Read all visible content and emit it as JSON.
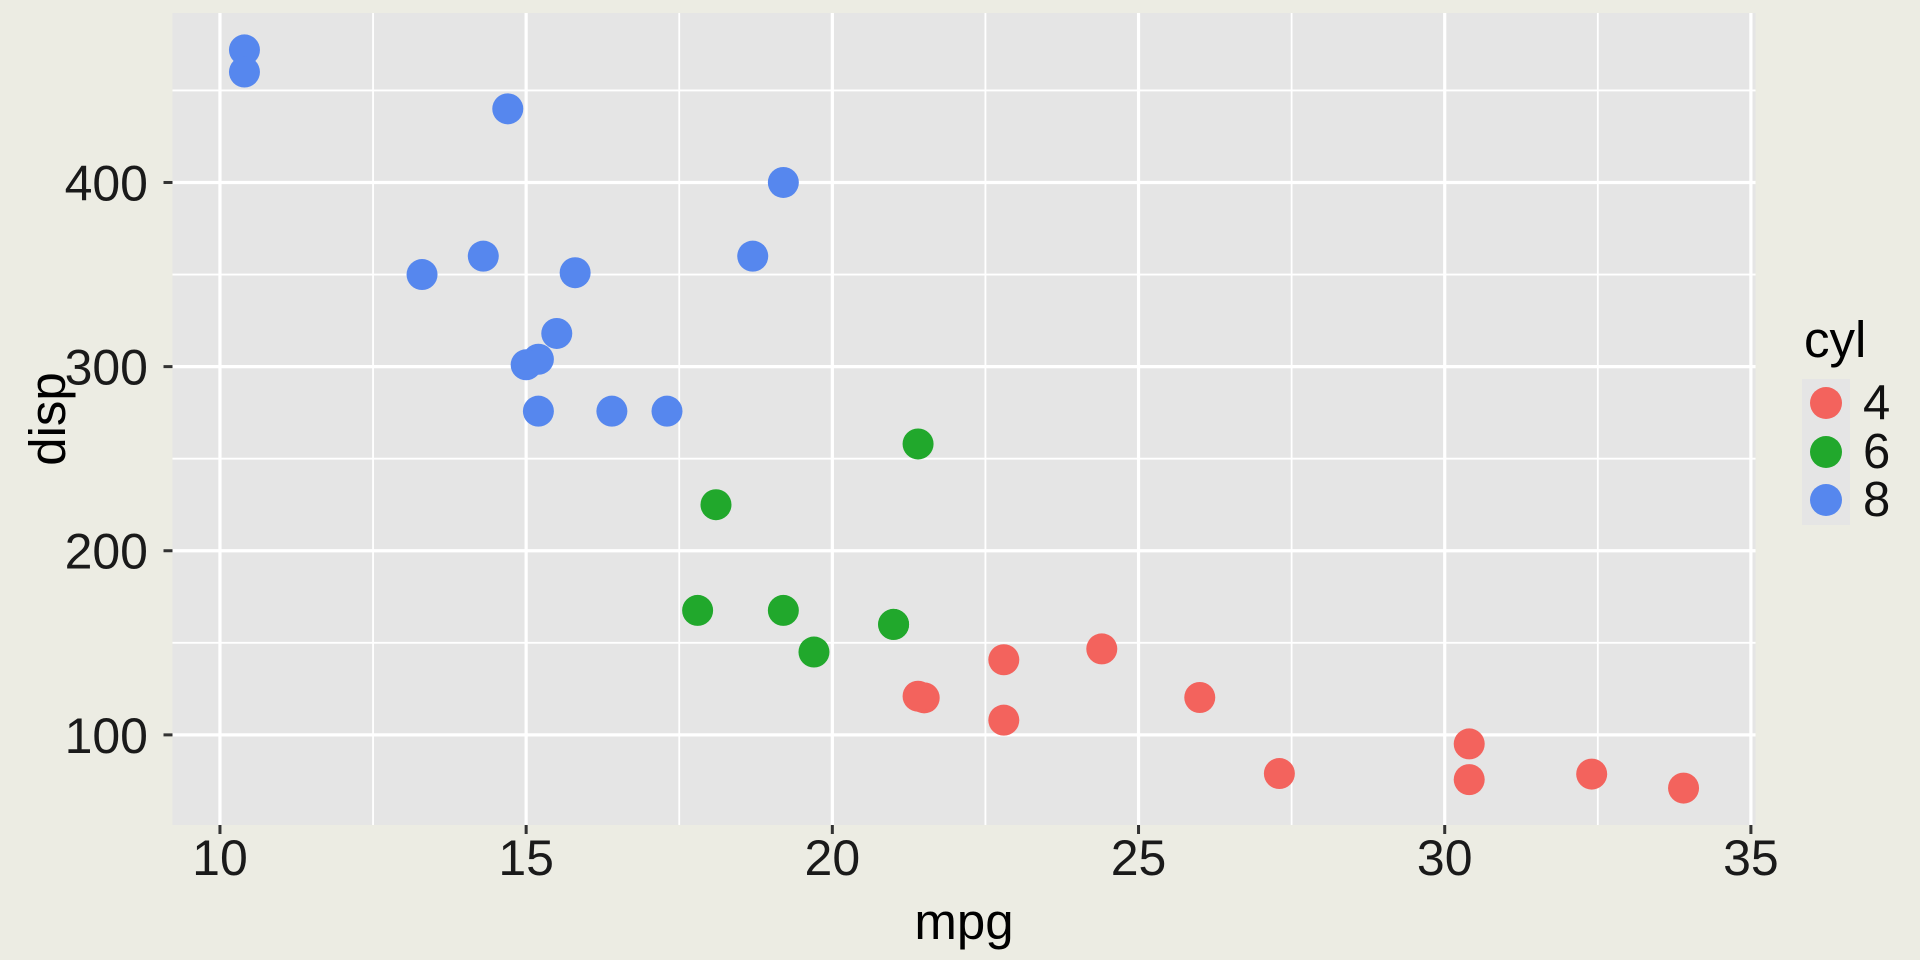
{
  "chart_data": {
    "type": "scatter",
    "title": "",
    "xlabel": "mpg",
    "ylabel": "disp",
    "xlim": [
      9.225,
      35.075
    ],
    "ylim": [
      51.055,
      492.045
    ],
    "x_ticks": [
      10,
      15,
      20,
      25,
      30,
      35
    ],
    "x_minor_ticks": [
      12.5,
      17.5,
      22.5,
      27.5,
      32.5
    ],
    "y_ticks": [
      100,
      200,
      300,
      400
    ],
    "y_minor_ticks": [
      150,
      250,
      350,
      450
    ],
    "grid": true,
    "legend": {
      "title": "cyl",
      "position": "right",
      "entries": [
        {
          "label": "4",
          "color": "#f3635d"
        },
        {
          "label": "6",
          "color": "#21a82c"
        },
        {
          "label": "8",
          "color": "#5687ee"
        }
      ]
    },
    "series": [
      {
        "name": "4",
        "color": "#f3635d",
        "points": [
          [
            22.8,
            108.0
          ],
          [
            24.4,
            146.7
          ],
          [
            22.8,
            140.8
          ],
          [
            32.4,
            78.7
          ],
          [
            30.4,
            75.7
          ],
          [
            33.9,
            71.1
          ],
          [
            21.5,
            120.1
          ],
          [
            27.3,
            79.0
          ],
          [
            26.0,
            120.3
          ],
          [
            30.4,
            95.1
          ],
          [
            21.4,
            121.0
          ]
        ]
      },
      {
        "name": "6",
        "color": "#21a82c",
        "points": [
          [
            21.0,
            160.0
          ],
          [
            21.0,
            160.0
          ],
          [
            21.4,
            258.0
          ],
          [
            18.1,
            225.0
          ],
          [
            19.2,
            167.6
          ],
          [
            17.8,
            167.6
          ],
          [
            19.7,
            145.0
          ]
        ]
      },
      {
        "name": "8",
        "color": "#5687ee",
        "points": [
          [
            18.7,
            360.0
          ],
          [
            14.3,
            360.0
          ],
          [
            16.4,
            275.8
          ],
          [
            17.3,
            275.8
          ],
          [
            15.2,
            275.8
          ],
          [
            10.4,
            472.0
          ],
          [
            10.4,
            460.0
          ],
          [
            14.7,
            440.0
          ],
          [
            15.5,
            318.0
          ],
          [
            15.2,
            304.0
          ],
          [
            13.3,
            350.0
          ],
          [
            19.2,
            400.0
          ],
          [
            15.8,
            351.0
          ],
          [
            15.0,
            301.0
          ]
        ]
      }
    ],
    "style": {
      "figure_bg": "#ececе3",
      "figure_bg_hex": "#ECECE3",
      "panel_bg": "#E5E5E5",
      "grid_color": "#FFFFFF",
      "tick_mark_color": "#333333",
      "tick_label_color": "#1A1A1A",
      "title_color": "#000000",
      "legend_key_bg": "#E5E5E5"
    }
  }
}
